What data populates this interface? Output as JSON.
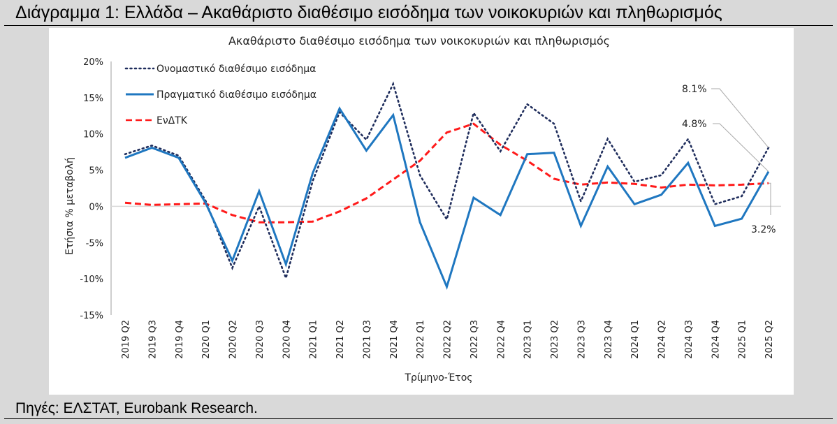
{
  "figure_title": "Διάγραμμα 1: Ελλάδα – Ακαθάριστο διαθέσιμο εισόδημα των νοικοκυριών και πληθωρισμός",
  "source": "Πηγές: ΕΛΣΤΑΤ, Eurobank Research.",
  "chart_data": {
    "type": "line",
    "title": "Ακαθάριστο διαθέσιμο εισόδημα των νοικοκυριών και πληθωρισμός",
    "xlabel": "Τρίμηνο-Έτος",
    "ylabel": "Ετήσια % μεταβολή",
    "ylim": [
      -15,
      20
    ],
    "yticks": [
      20,
      15,
      10,
      5,
      0,
      -5,
      -10,
      -15
    ],
    "ytick_labels": [
      "20%",
      "15%",
      "10%",
      "5%",
      "0%",
      "-5%",
      "-10%",
      "-15%"
    ],
    "grid": "zero line only",
    "legend": "top-left",
    "categories": [
      "2019 Q2",
      "2019 Q3",
      "2019 Q4",
      "2020 Q1",
      "2020 Q2",
      "2020 Q3",
      "2020 Q4",
      "2021 Q1",
      "2021 Q2",
      "2021 Q3",
      "2021 Q4",
      "2022 Q1",
      "2022 Q2",
      "2022 Q3",
      "2022 Q4",
      "2023 Q1",
      "2023 Q2",
      "2023 Q3",
      "2023 Q4",
      "2024 Q1",
      "2024 Q2",
      "2024 Q3",
      "2024 Q4",
      "2025 Q1",
      "2025 Q2"
    ],
    "series": [
      {
        "name": "Ονομαστικό διαθέσιμο εισόδημα",
        "color": "#1f2d5c",
        "style": "dotted",
        "values": [
          7.2,
          8.4,
          7.0,
          0.8,
          -8.5,
          0.0,
          -9.9,
          3.5,
          13.0,
          9.2,
          16.9,
          4.3,
          -1.8,
          12.9,
          7.6,
          14.1,
          11.4,
          0.7,
          9.3,
          3.4,
          4.3,
          9.3,
          0.3,
          1.4,
          8.1
        ]
      },
      {
        "name": "Πραγματικό διαθέσιμο εισόδημα",
        "color": "#1f77c0",
        "style": "solid",
        "values": [
          6.7,
          8.1,
          6.7,
          0.5,
          -7.5,
          2.1,
          -8.0,
          4.6,
          13.5,
          7.7,
          12.6,
          -2.2,
          -11.1,
          1.2,
          -1.2,
          7.2,
          7.4,
          -2.7,
          5.5,
          0.3,
          1.6,
          6.0,
          -2.7,
          -1.7,
          4.8
        ]
      },
      {
        "name": "ΕνΔΤΚ",
        "color": "#ff1a1a",
        "style": "dashed",
        "values": [
          0.5,
          0.2,
          0.3,
          0.4,
          -1.2,
          -2.2,
          -2.2,
          -2.1,
          -0.7,
          1.1,
          3.7,
          6.3,
          10.2,
          11.4,
          8.5,
          6.3,
          3.8,
          3.0,
          3.3,
          3.1,
          2.6,
          3.0,
          2.9,
          3.0,
          3.2
        ]
      }
    ],
    "annotations": [
      "8.1%",
      "4.8%",
      "3.2%"
    ]
  }
}
